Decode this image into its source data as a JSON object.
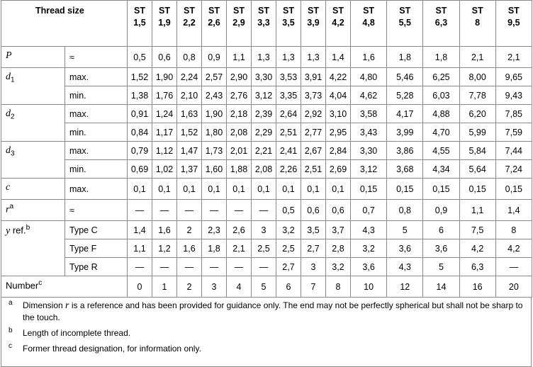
{
  "header": {
    "thread_size": "Thread size",
    "columns": [
      {
        "prefix": "ST",
        "size": "1,5"
      },
      {
        "prefix": "ST",
        "size": "1,9"
      },
      {
        "prefix": "ST",
        "size": "2,2"
      },
      {
        "prefix": "ST",
        "size": "2,6"
      },
      {
        "prefix": "ST",
        "size": "2,9"
      },
      {
        "prefix": "ST",
        "size": "3,3"
      },
      {
        "prefix": "ST",
        "size": "3,5"
      },
      {
        "prefix": "ST",
        "size": "3,9"
      },
      {
        "prefix": "ST",
        "size": "4,2"
      },
      {
        "prefix": "ST",
        "size": "4,8"
      },
      {
        "prefix": "ST",
        "size": "5,5"
      },
      {
        "prefix": "ST",
        "size": "6,3"
      },
      {
        "prefix": "ST",
        "size": "8"
      },
      {
        "prefix": "ST",
        "size": "9,5"
      }
    ]
  },
  "groups": [
    {
      "symbol": {
        "base": "P",
        "italic": true
      },
      "rows": [
        {
          "qualifier": "≈",
          "values": [
            "0,5",
            "0,6",
            "0,8",
            "0,9",
            "1,1",
            "1,3",
            "1,3",
            "1,3",
            "1,4",
            "1,6",
            "1,8",
            "1,8",
            "2,1",
            "2,1"
          ]
        }
      ]
    },
    {
      "symbol": {
        "base": "d",
        "sub": "1",
        "italic": true
      },
      "rows": [
        {
          "qualifier": "max.",
          "values": [
            "1,52",
            "1,90",
            "2,24",
            "2,57",
            "2,90",
            "3,30",
            "3,53",
            "3,91",
            "4,22",
            "4,80",
            "5,46",
            "6,25",
            "8,00",
            "9,65"
          ]
        },
        {
          "qualifier": "min.",
          "values": [
            "1,38",
            "1,76",
            "2,10",
            "2,43",
            "2,76",
            "3,12",
            "3,35",
            "3,73",
            "4,04",
            "4,62",
            "5,28",
            "6,03",
            "7,78",
            "9,43"
          ]
        }
      ]
    },
    {
      "symbol": {
        "base": "d",
        "sub": "2",
        "italic": true
      },
      "rows": [
        {
          "qualifier": "max.",
          "values": [
            "0,91",
            "1,24",
            "1,63",
            "1,90",
            "2,18",
            "2,39",
            "2,64",
            "2,92",
            "3,10",
            "3,58",
            "4,17",
            "4,88",
            "6,20",
            "7,85"
          ]
        },
        {
          "qualifier": "min.",
          "values": [
            "0,84",
            "1,17",
            "1,52",
            "1,80",
            "2,08",
            "2,29",
            "2,51",
            "2,77",
            "2,95",
            "3,43",
            "3,99",
            "4,70",
            "5,99",
            "7,59"
          ]
        }
      ]
    },
    {
      "symbol": {
        "base": "d",
        "sub": "3",
        "italic": true
      },
      "rows": [
        {
          "qualifier": "max.",
          "values": [
            "0,79",
            "1,12",
            "1,47",
            "1,73",
            "2,01",
            "2,21",
            "2,41",
            "2,67",
            "2,84",
            "3,30",
            "3,86",
            "4,55",
            "5,84",
            "7,44"
          ]
        },
        {
          "qualifier": "min.",
          "values": [
            "0,69",
            "1,02",
            "1,37",
            "1,60",
            "1,88",
            "2,08",
            "2,26",
            "2,51",
            "2,69",
            "3,12",
            "3,68",
            "4,34",
            "5,64",
            "7,24"
          ]
        }
      ]
    },
    {
      "symbol": {
        "base": "c",
        "italic": true
      },
      "rows": [
        {
          "qualifier": "max.",
          "values": [
            "0,1",
            "0,1",
            "0,1",
            "0,1",
            "0,1",
            "0,1",
            "0,1",
            "0,1",
            "0,1",
            "0,15",
            "0,15",
            "0,15",
            "0,15",
            "0,15"
          ]
        }
      ]
    },
    {
      "symbol": {
        "base": "r",
        "sup": "a",
        "italic": true
      },
      "rows": [
        {
          "qualifier": "≈",
          "values": [
            "—",
            "—",
            "—",
            "—",
            "—",
            "—",
            "0,5",
            "0,6",
            "0,6",
            "0,7",
            "0,8",
            "0,9",
            "1,1",
            "1,4"
          ]
        }
      ]
    },
    {
      "symbol": {
        "base": "y",
        "suffix": "ref.",
        "sup": "b",
        "italic": true
      },
      "rows": [
        {
          "qualifier": "Type C",
          "values": [
            "1,4",
            "1,6",
            "2",
            "2,3",
            "2,6",
            "3",
            "3,2",
            "3,5",
            "3,7",
            "4,3",
            "5",
            "6",
            "7,5",
            "8"
          ]
        },
        {
          "qualifier": "Type F",
          "values": [
            "1,1",
            "1,2",
            "1,6",
            "1,8",
            "2,1",
            "2,5",
            "2,5",
            "2,7",
            "2,8",
            "3,2",
            "3,6",
            "3,6",
            "4,2",
            "4,2"
          ]
        },
        {
          "qualifier": "Type R",
          "values": [
            "—",
            "—",
            "—",
            "—",
            "—",
            "—",
            "2,7",
            "3",
            "3,2",
            "3,6",
            "4,3",
            "5",
            "6,3",
            "—"
          ]
        }
      ]
    },
    {
      "symbol": {
        "base": "Number",
        "sup": "c",
        "italic": false
      },
      "rows": [
        {
          "values": [
            "0",
            "1",
            "2",
            "3",
            "4",
            "5",
            "6",
            "7",
            "8",
            "10",
            "12",
            "14",
            "16",
            "20"
          ]
        }
      ]
    }
  ],
  "footnotes": [
    {
      "mark": "a",
      "before": "Dimension",
      "italic": "r",
      "after": "is a reference and has been provided for guidance only. The end may not be perfectly spherical but shall not be sharp to the touch."
    },
    {
      "mark": "b",
      "before": "Length of incomplete thread."
    },
    {
      "mark": "c",
      "before": "Former thread designation, for information only."
    }
  ]
}
